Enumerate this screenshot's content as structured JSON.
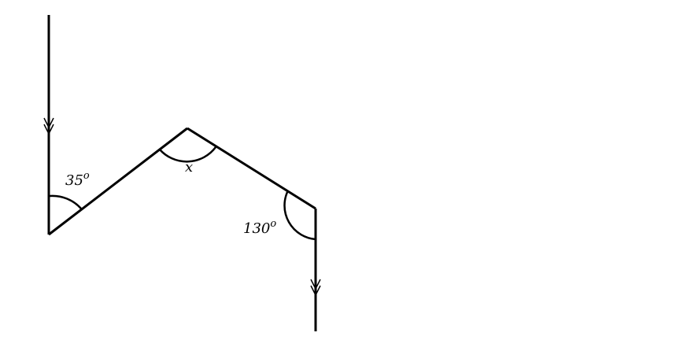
{
  "angles": {
    "left": {
      "value": "35",
      "unit": "o"
    },
    "top": {
      "value": "x"
    },
    "right": {
      "value": "130",
      "unit": "o"
    }
  },
  "colors": {
    "line": "#000000",
    "background": "#ffffff"
  }
}
